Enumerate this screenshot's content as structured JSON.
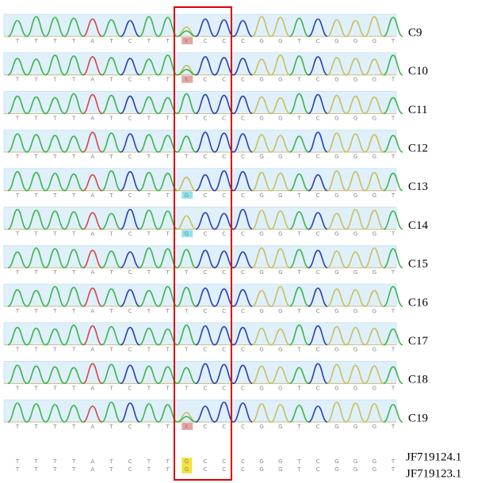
{
  "base_colors": {
    "A": "#d04a4a",
    "C": "#2b3fb0",
    "G": "#c8c060",
    "T": "#3cb44b"
  },
  "rows": [
    {
      "label": "C9",
      "bases": [
        "T",
        "T",
        "T",
        "T",
        "A",
        "T",
        "C",
        "T",
        "T",
        {
          "base": "K",
          "color": "#e8a3a3"
        },
        "C",
        "C",
        "C",
        "G",
        "G",
        "T",
        "C",
        "G",
        "G",
        "G",
        "T"
      ]
    },
    {
      "label": "C10",
      "bases": [
        "T",
        "T",
        "T",
        "T",
        "A",
        "T",
        "C",
        "T",
        "T",
        {
          "base": "K",
          "color": "#e8a3a3"
        },
        "C",
        "C",
        "C",
        "G",
        "G",
        "T",
        "C",
        "G",
        "G",
        "G",
        "T"
      ]
    },
    {
      "label": "C11",
      "bases": [
        "T",
        "T",
        "T",
        "T",
        "A",
        "T",
        "C",
        "T",
        "T",
        "T",
        "C",
        "C",
        "C",
        "G",
        "G",
        "T",
        "C",
        "G",
        "G",
        "G",
        "T"
      ]
    },
    {
      "label": "C12",
      "bases": [
        "T",
        "T",
        "T",
        "T",
        "A",
        "T",
        "C",
        "T",
        "T",
        "T",
        "C",
        "C",
        "C",
        "G",
        "G",
        "T",
        "C",
        "G",
        "G",
        "G",
        "T"
      ]
    },
    {
      "label": "C13",
      "bases": [
        "T",
        "T",
        "T",
        "T",
        "A",
        "T",
        "C",
        "T",
        "T",
        {
          "base": "G",
          "color": "#8fe3ec"
        },
        "C",
        "C",
        "C",
        "G",
        "G",
        "T",
        "C",
        "G",
        "G",
        "G",
        "T"
      ]
    },
    {
      "label": "C14",
      "bases": [
        "T",
        "T",
        "T",
        "T",
        "A",
        "T",
        "C",
        "T",
        "T",
        {
          "base": "G",
          "color": "#8fe3ec"
        },
        "C",
        "C",
        "C",
        "G",
        "G",
        "T",
        "C",
        "G",
        "G",
        "G",
        "T"
      ]
    },
    {
      "label": "C15",
      "bases": [
        "T",
        "T",
        "T",
        "T",
        "A",
        "T",
        "C",
        "T",
        "T",
        "T",
        "C",
        "C",
        "C",
        "G",
        "G",
        "T",
        "C",
        "G",
        "G",
        "G",
        "T"
      ]
    },
    {
      "label": "C16",
      "bases": [
        "T",
        "T",
        "T",
        "T",
        "A",
        "T",
        "C",
        "T",
        "T",
        "T",
        "C",
        "C",
        "C",
        "G",
        "G",
        "T",
        "C",
        "G",
        "G",
        "G",
        "T"
      ]
    },
    {
      "label": "C17",
      "bases": [
        "T",
        "T",
        "T",
        "T",
        "A",
        "T",
        "C",
        "T",
        "T",
        "T",
        "C",
        "C",
        "C",
        "G",
        "G",
        "T",
        "C",
        "G",
        "G",
        "G",
        "T"
      ]
    },
    {
      "label": "C18",
      "bases": [
        "T",
        "T",
        "T",
        "T",
        "A",
        "T",
        "C",
        "T",
        "T",
        "T",
        "C",
        "C",
        "C",
        "G",
        "G",
        "T",
        "C",
        "G",
        "G",
        "G",
        "T"
      ]
    },
    {
      "label": "C19",
      "bases": [
        "T",
        "T",
        "T",
        "T",
        "A",
        "T",
        "C",
        "T",
        "T",
        {
          "base": "K",
          "color": "#e8a3a3"
        },
        "C",
        "C",
        "C",
        "G",
        "G",
        "T",
        "C",
        "G",
        "G",
        "G",
        "T"
      ]
    }
  ],
  "references": [
    {
      "label": "JF719124.1",
      "bases": [
        "T",
        "T",
        "T",
        "T",
        "A",
        "T",
        "C",
        "T",
        "T",
        {
          "base": "G",
          "color": "#f2e23a"
        },
        "C",
        "C",
        "C",
        "G",
        "G",
        "T",
        "C",
        "G",
        "G",
        "G",
        "T"
      ]
    },
    {
      "label": "JF719123.1",
      "bases": [
        "T",
        "T",
        "T",
        "T",
        "A",
        "T",
        "C",
        "T",
        "T",
        {
          "base": "G",
          "color": "#f2e23a"
        },
        "C",
        "C",
        "C",
        "G",
        "G",
        "T",
        "C",
        "G",
        "G",
        "G",
        "T"
      ]
    }
  ]
}
